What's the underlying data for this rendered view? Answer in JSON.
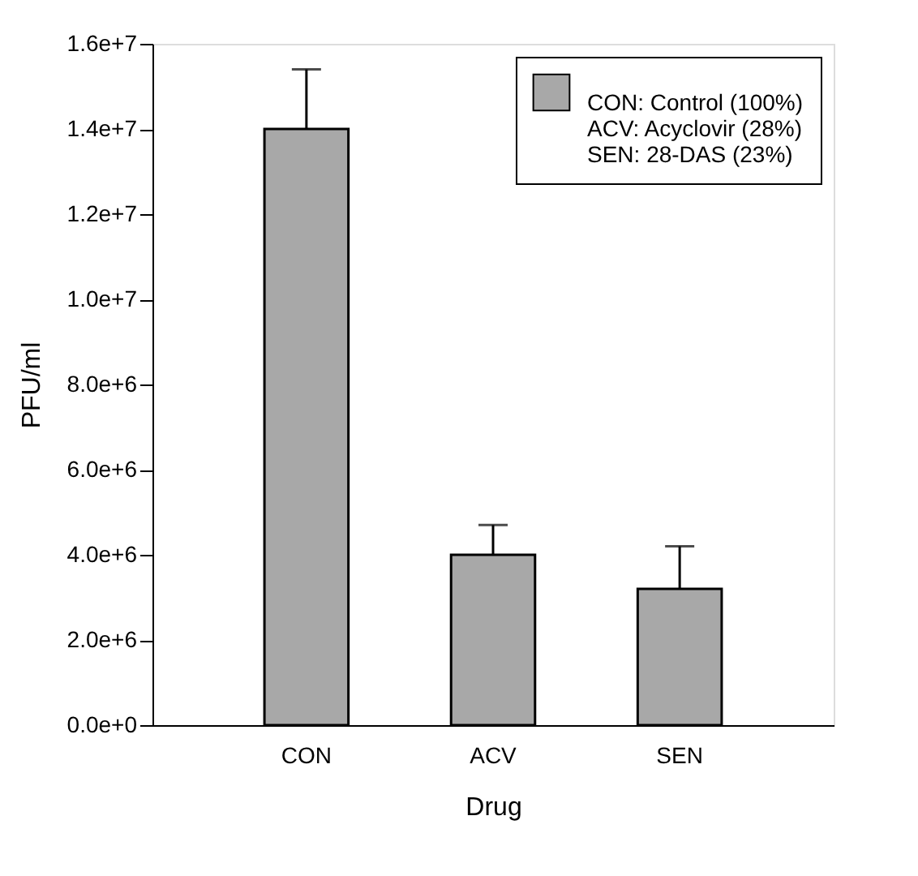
{
  "chart_data": {
    "type": "bar",
    "xlabel": "Drug",
    "ylabel": "PFU/ml",
    "categories": [
      "CON",
      "ACV",
      "SEN"
    ],
    "series": [
      {
        "name": "CON: Control (100%)\nACV: Acyclovir (28%)\nSEN: 28-DAS (23%)",
        "color": "#a8a8a8",
        "values": [
          14000000,
          4000000,
          3200000
        ],
        "errors": [
          1400000,
          700000,
          1000000
        ]
      }
    ],
    "ylim": [
      0,
      16000000
    ],
    "yticks": [
      {
        "value": 0,
        "label": "0.0e+0"
      },
      {
        "value": 2000000,
        "label": "2.0e+6"
      },
      {
        "value": 4000000,
        "label": "4.0e+6"
      },
      {
        "value": 6000000,
        "label": "6.0e+6"
      },
      {
        "value": 8000000,
        "label": "8.0e+6"
      },
      {
        "value": 10000000,
        "label": "1.0e+7"
      },
      {
        "value": 12000000,
        "label": "1.2e+7"
      },
      {
        "value": 14000000,
        "label": "1.4e+7"
      },
      {
        "value": 16000000,
        "label": "1.6e+7"
      }
    ],
    "legend": "top right"
  }
}
